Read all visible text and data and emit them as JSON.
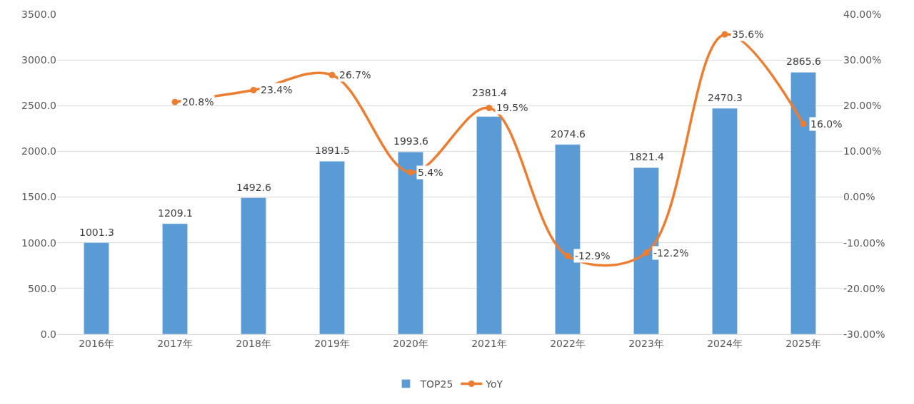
{
  "chart_data": {
    "type": "bar",
    "categories": [
      "2016年",
      "2017年",
      "2018年",
      "2019年",
      "2020年",
      "2021年",
      "2022年",
      "2023年",
      "2024年",
      "2025年"
    ],
    "series": [
      {
        "name": "TOP25",
        "color": "#5b9bd5",
        "values": [
          1001.3,
          1209.1,
          1492.6,
          1891.5,
          1993.6,
          2381.4,
          2074.6,
          1821.4,
          2470.3,
          2865.6
        ],
        "value_labels": [
          "1001.3",
          "1209.1",
          "1492.6",
          "1891.5",
          "1993.6",
          "2381.4",
          "2074.6",
          "1821.4",
          "2470.3",
          "2865.6"
        ]
      },
      {
        "name": "YoY",
        "type": "line",
        "axis": "y2",
        "color": "#ed7d31",
        "marker": "circle",
        "line_style": "solid",
        "values": [
          null,
          20.8,
          23.4,
          26.7,
          5.4,
          19.5,
          -12.9,
          -12.2,
          35.6,
          16.0
        ],
        "value_labels": [
          null,
          "20.8%",
          "23.4%",
          "26.7%",
          "5.4%",
          "19.5%",
          "-12.9%",
          "-12.2%",
          "35.6%",
          "16.0%"
        ]
      }
    ],
    "ylim": [
      0,
      3500
    ],
    "yticks": [
      {
        "value": 0,
        "label": "0.0"
      },
      {
        "value": 500,
        "label": "500.0"
      },
      {
        "value": 1000,
        "label": "1000.0"
      },
      {
        "value": 1500,
        "label": "1500.0"
      },
      {
        "value": 2000,
        "label": "2000.0"
      },
      {
        "value": 2500,
        "label": "2500.0"
      },
      {
        "value": 3000,
        "label": "3000.0"
      },
      {
        "value": 3500,
        "label": "3500.0"
      }
    ],
    "y2lim": [
      -30,
      40
    ],
    "y2ticks": [
      {
        "value": -30,
        "label": "-30.00%"
      },
      {
        "value": -20,
        "label": "-20.00%"
      },
      {
        "value": -10,
        "label": "-10.00%"
      },
      {
        "value": 0,
        "label": "0.00%"
      },
      {
        "value": 10,
        "label": "10.00%"
      },
      {
        "value": 20,
        "label": "20.00%"
      },
      {
        "value": 30,
        "label": "30.00%"
      },
      {
        "value": 40,
        "label": "40.00%"
      }
    ],
    "grid": "y",
    "legend": "bottom"
  }
}
